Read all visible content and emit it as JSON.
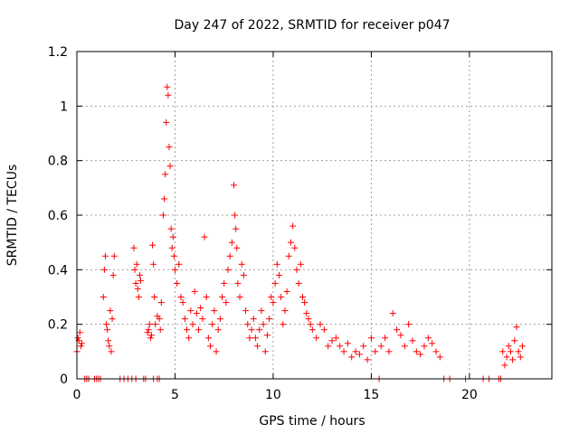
{
  "chart_data": {
    "type": "scatter",
    "title": "Day 247 of 2022, SRMTID for receiver p047",
    "xlabel": "GPS time / hours",
    "ylabel": "SRMTID / TECUs",
    "xlim": [
      0,
      24.2
    ],
    "ylim": [
      0,
      1.2
    ],
    "xticks": [
      0,
      5,
      10,
      15,
      20
    ],
    "yticks": [
      0,
      0.2,
      0.4,
      0.6,
      0.8,
      1,
      1.2
    ],
    "ytick_labels": [
      "0",
      "0.2",
      "0.4",
      "0.6",
      "0.8",
      "1",
      "1.2"
    ],
    "grid": true,
    "marker": "+",
    "series_color": "#ff0000",
    "series": [
      {
        "name": "SRMTID",
        "x": [
          0.0,
          0.05,
          0.1,
          0.15,
          0.2,
          0.25,
          1.35,
          1.4,
          1.45,
          1.5,
          1.55,
          1.6,
          1.65,
          1.7,
          1.75,
          1.8,
          1.85,
          1.9,
          2.9,
          2.95,
          3.0,
          3.05,
          3.1,
          3.15,
          3.2,
          3.25,
          3.6,
          3.65,
          3.7,
          3.75,
          3.8,
          3.85,
          3.9,
          3.95,
          4.0,
          4.1,
          4.2,
          4.25,
          4.3,
          4.4,
          4.45,
          4.5,
          4.55,
          4.6,
          4.65,
          4.7,
          4.75,
          4.8,
          4.85,
          4.9,
          4.95,
          5.0,
          5.1,
          5.2,
          5.3,
          5.4,
          5.5,
          5.6,
          5.7,
          5.8,
          5.9,
          6.0,
          6.1,
          6.2,
          6.3,
          6.4,
          6.5,
          6.6,
          6.7,
          6.8,
          6.9,
          7.0,
          7.1,
          7.2,
          7.3,
          7.4,
          7.5,
          7.6,
          7.7,
          7.8,
          7.9,
          8.0,
          8.05,
          8.1,
          8.15,
          8.2,
          8.3,
          8.4,
          8.5,
          8.6,
          8.7,
          8.8,
          8.9,
          9.0,
          9.1,
          9.2,
          9.3,
          9.4,
          9.5,
          9.6,
          9.7,
          9.8,
          9.9,
          10.0,
          10.1,
          10.2,
          10.3,
          10.4,
          10.5,
          10.6,
          10.7,
          10.8,
          10.9,
          11.0,
          11.1,
          11.2,
          11.3,
          11.4,
          11.5,
          11.6,
          11.7,
          11.8,
          11.9,
          12.0,
          12.2,
          12.4,
          12.6,
          12.8,
          13.0,
          13.2,
          13.4,
          13.6,
          13.8,
          14.0,
          14.2,
          14.4,
          14.6,
          14.8,
          15.0,
          15.2,
          15.5,
          15.7,
          15.9,
          16.1,
          16.3,
          16.5,
          16.7,
          16.9,
          17.1,
          17.3,
          17.5,
          17.7,
          17.9,
          18.1,
          18.3,
          18.5,
          21.7,
          21.8,
          21.9,
          22.0,
          22.1,
          22.2,
          22.3,
          22.4,
          22.5,
          22.6,
          22.7,
          0.4,
          0.5,
          0.6,
          0.9,
          1.0,
          1.1,
          1.2,
          2.2,
          2.4,
          2.6,
          2.8,
          3.0,
          3.4,
          3.5,
          3.9,
          4.1,
          4.2,
          15.4,
          18.7,
          19.0,
          19.8,
          20.7,
          21.0,
          21.5,
          21.6
        ],
        "y": [
          0.1,
          0.15,
          0.14,
          0.17,
          0.12,
          0.13,
          0.3,
          0.4,
          0.45,
          0.2,
          0.18,
          0.14,
          0.12,
          0.25,
          0.1,
          0.22,
          0.38,
          0.45,
          0.48,
          0.4,
          0.35,
          0.42,
          0.33,
          0.3,
          0.38,
          0.36,
          0.17,
          0.18,
          0.2,
          0.15,
          0.16,
          0.49,
          0.42,
          0.3,
          0.2,
          0.23,
          0.22,
          0.18,
          0.28,
          0.6,
          0.66,
          0.75,
          0.94,
          1.07,
          1.04,
          0.85,
          0.78,
          0.55,
          0.48,
          0.52,
          0.45,
          0.4,
          0.35,
          0.42,
          0.3,
          0.28,
          0.22,
          0.18,
          0.15,
          0.25,
          0.2,
          0.32,
          0.24,
          0.18,
          0.26,
          0.22,
          0.52,
          0.3,
          0.15,
          0.12,
          0.2,
          0.25,
          0.1,
          0.18,
          0.22,
          0.3,
          0.35,
          0.28,
          0.4,
          0.45,
          0.5,
          0.71,
          0.6,
          0.55,
          0.48,
          0.35,
          0.3,
          0.42,
          0.38,
          0.25,
          0.2,
          0.15,
          0.18,
          0.22,
          0.15,
          0.12,
          0.18,
          0.25,
          0.2,
          0.1,
          0.16,
          0.22,
          0.3,
          0.28,
          0.35,
          0.42,
          0.38,
          0.3,
          0.2,
          0.25,
          0.32,
          0.45,
          0.5,
          0.56,
          0.48,
          0.4,
          0.35,
          0.42,
          0.3,
          0.28,
          0.24,
          0.22,
          0.2,
          0.18,
          0.15,
          0.2,
          0.18,
          0.12,
          0.14,
          0.15,
          0.12,
          0.1,
          0.13,
          0.08,
          0.1,
          0.09,
          0.12,
          0.07,
          0.15,
          0.1,
          0.12,
          0.15,
          0.1,
          0.24,
          0.18,
          0.16,
          0.12,
          0.2,
          0.14,
          0.1,
          0.09,
          0.12,
          0.15,
          0.13,
          0.1,
          0.08,
          0.1,
          0.05,
          0.08,
          0.12,
          0.1,
          0.07,
          0.14,
          0.19,
          0.1,
          0.08,
          0.12,
          0,
          0,
          0,
          0,
          0,
          0,
          0,
          0,
          0,
          0,
          0,
          0,
          0,
          0,
          0,
          0,
          0,
          0,
          0,
          0,
          0,
          0,
          0,
          0,
          0
        ]
      }
    ]
  }
}
